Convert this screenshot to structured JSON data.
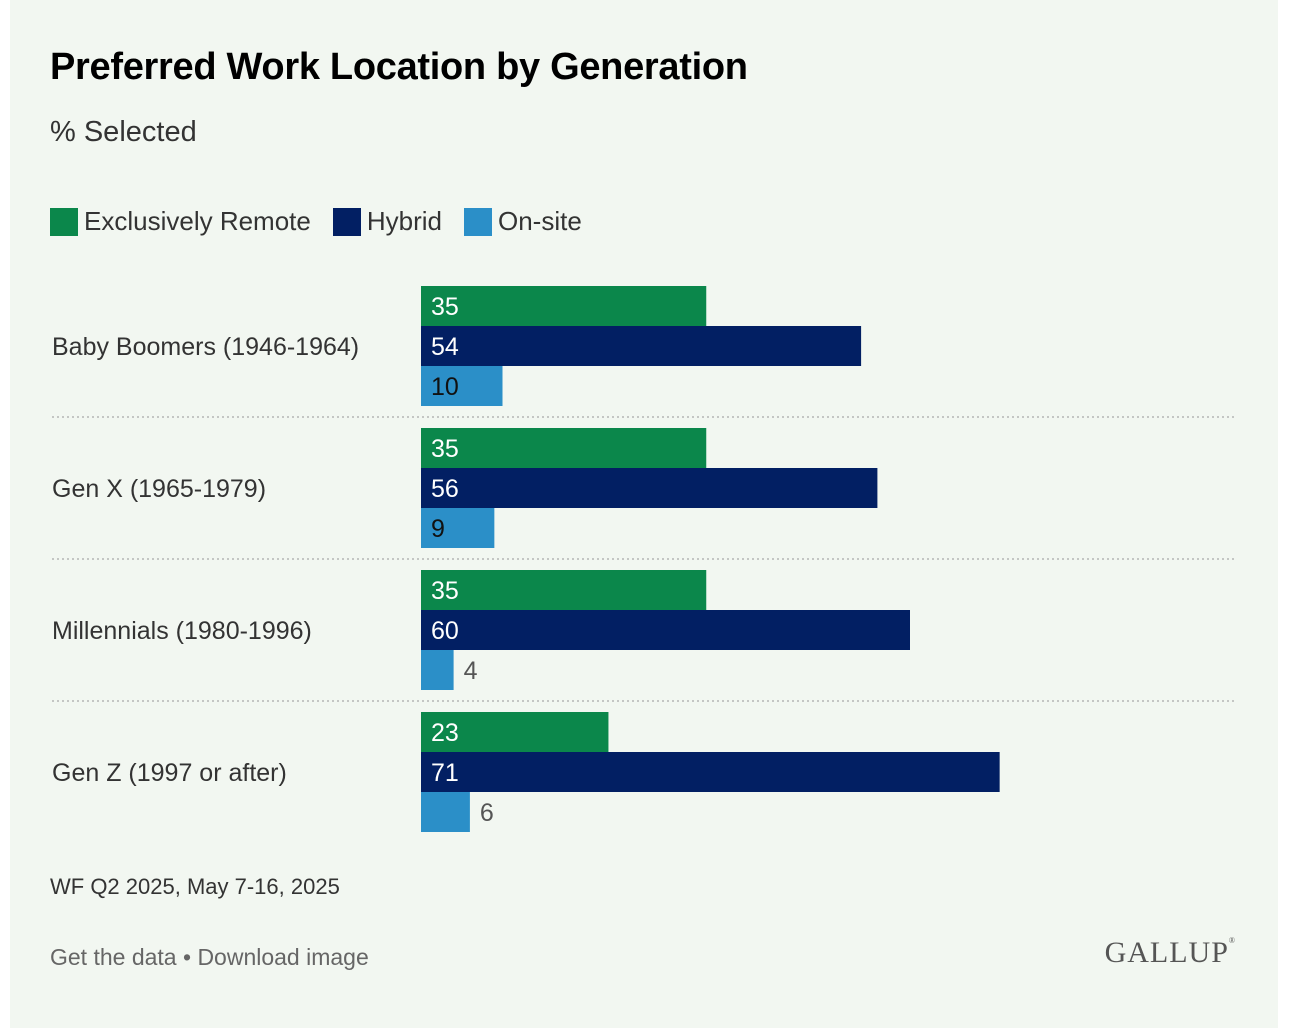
{
  "header": {
    "title": "Preferred Work Location by Generation",
    "subtitle": "% Selected"
  },
  "colors": {
    "remote": "#0b874b",
    "hybrid": "#021f63",
    "onsite": "#2b8fc8",
    "background": "#f2f7f1"
  },
  "chart_data": {
    "type": "bar",
    "orientation": "horizontal",
    "title": "Preferred Work Location by Generation",
    "subtitle": "% Selected",
    "categories": [
      "Baby Boomers (1946-1964)",
      "Gen X (1965-1979)",
      "Millennials (1980-1996)",
      "Gen Z (1997 or after)"
    ],
    "series": [
      {
        "name": "Exclusively Remote",
        "color": "#0b874b",
        "values": [
          35,
          35,
          35,
          23
        ]
      },
      {
        "name": "Hybrid",
        "color": "#021f63",
        "values": [
          54,
          56,
          60,
          71
        ]
      },
      {
        "name": "On-site",
        "color": "#2b8fc8",
        "values": [
          10,
          9,
          4,
          6
        ]
      }
    ],
    "xlim": [
      0,
      100
    ],
    "grid": false,
    "legend_position": "top-left",
    "data_labels": true
  },
  "footer": {
    "source": "WF Q2 2025, May 7-16, 2025",
    "get_data": "Get the data",
    "separator": "•",
    "download": "Download image",
    "logo": "GALLUP"
  }
}
